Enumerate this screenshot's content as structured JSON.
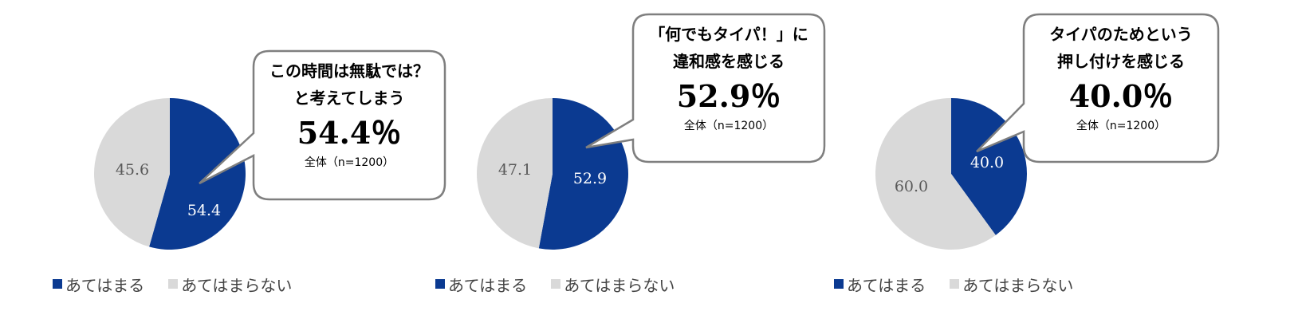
{
  "colors": {
    "yes": "#0b3a91",
    "no": "#d9d9d9",
    "border": "#7f7f7f"
  },
  "chart_data": [
    {
      "type": "pie",
      "slices": [
        {
          "name": "あてはまる",
          "value": 54.4
        },
        {
          "name": "あてはまらない",
          "value": 45.6
        }
      ],
      "labels": [
        "54.4",
        "45.6"
      ],
      "legend": [
        "あてはまる",
        "あてはまらない"
      ],
      "callout": {
        "lines": [
          "この時間は無駄では？",
          "と考えてしまう"
        ],
        "pct": "54.4％",
        "base": "全体（n=1200）"
      }
    },
    {
      "type": "pie",
      "slices": [
        {
          "name": "あてはまる",
          "value": 52.9
        },
        {
          "name": "あてはまらない",
          "value": 47.1
        }
      ],
      "labels": [
        "52.9",
        "47.1"
      ],
      "legend": [
        "あてはまる",
        "あてはまらない"
      ],
      "callout": {
        "lines": [
          "「何でもタイパ！」に",
          "違和感を感じる"
        ],
        "pct": "52.9％",
        "base": "全体（n=1200）"
      }
    },
    {
      "type": "pie",
      "slices": [
        {
          "name": "あてはまる",
          "value": 40.0
        },
        {
          "name": "あてはまらない",
          "value": 60.0
        }
      ],
      "labels": [
        "40.0",
        "60.0"
      ],
      "legend": [
        "あてはまる",
        "あてはまらない"
      ],
      "callout": {
        "lines": [
          "タイパのためという",
          "押し付けを感じる"
        ],
        "pct": "40.0％",
        "base": "全体（n=1200）"
      }
    }
  ]
}
